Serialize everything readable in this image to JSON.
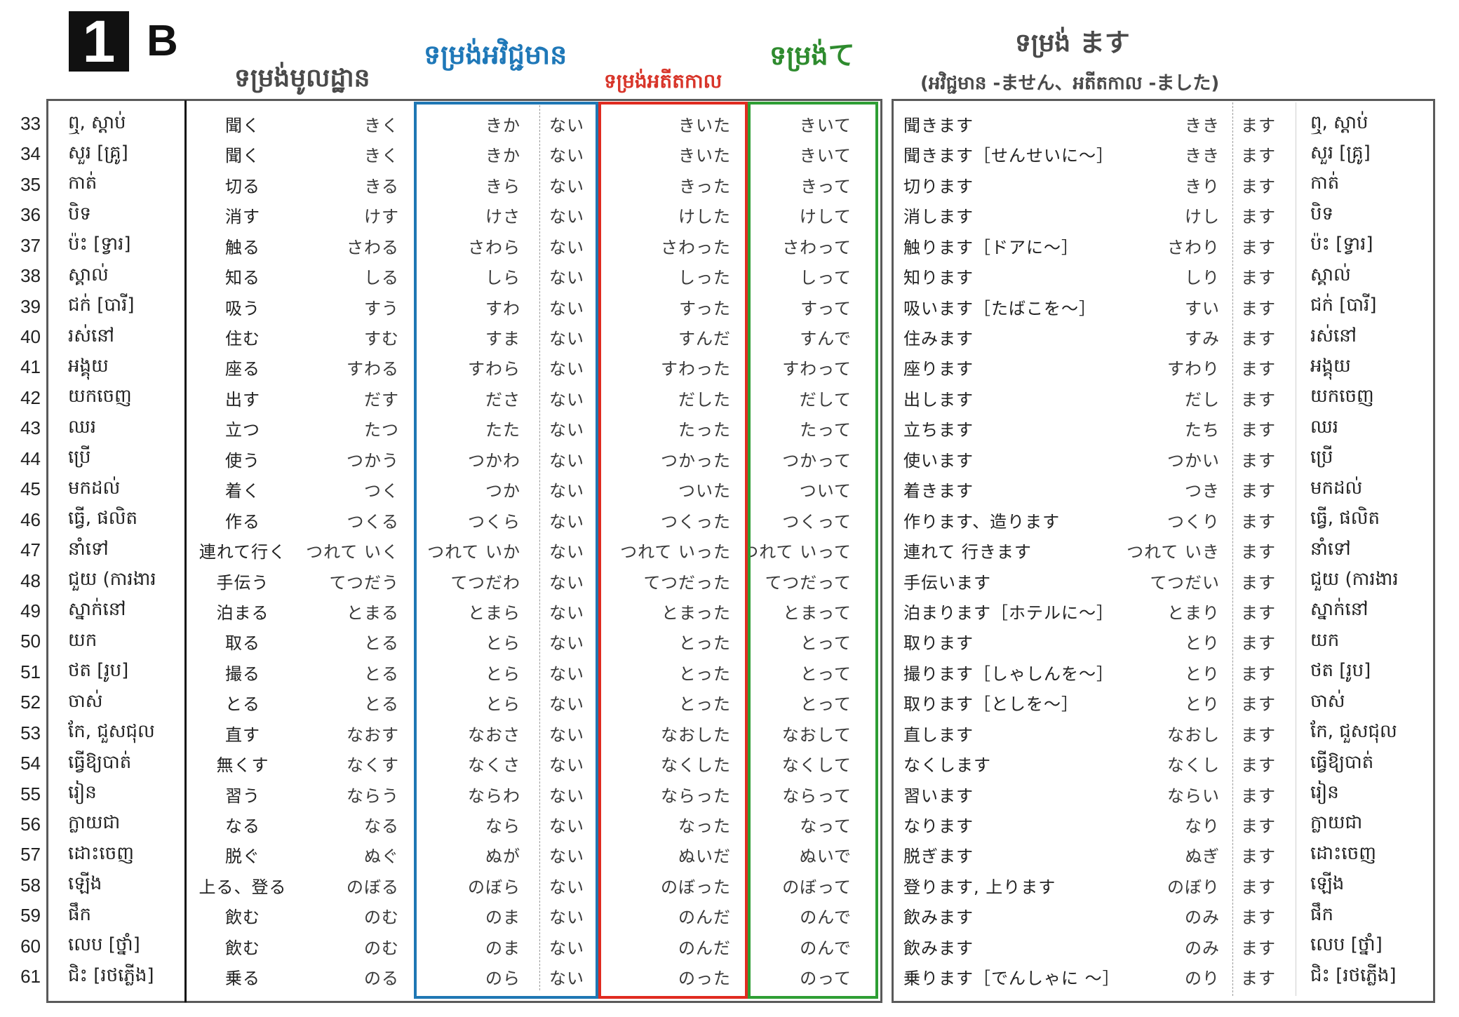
{
  "badge": {
    "number": "1",
    "letter": "B"
  },
  "headers": {
    "dict": "ទម្រង់មូលដ្ឋាន",
    "neg": "ទម្រង់អវិជ្ជមាន",
    "past": "ទម្រង់អតីតកាល",
    "te": "ទម្រង់て",
    "masu": "ទម្រង់ ます",
    "masu_sub": "(អវិជ្ជមាន -ません、អតីតកាល -ました)"
  },
  "colors": {
    "neg_box": "#1f77b4",
    "past_box": "#e02b20",
    "te_box": "#2e9e34"
  },
  "table": {
    "neg_suffix": "ない",
    "masu_suffix": "ます"
  },
  "rows": [
    {
      "n": "33",
      "km": "ឮ, ស្តាប់",
      "kanji": "聞く",
      "kana": "きく",
      "neg": "きか",
      "past": "きいた",
      "te": "きいて",
      "masu": "聞きます",
      "stem": "きき"
    },
    {
      "n": "34",
      "km": "សួរ [គ្រូ]",
      "kanji": "聞く",
      "kana": "きく",
      "neg": "きか",
      "past": "きいた",
      "te": "きいて",
      "masu": "聞きます［せんせいに～］",
      "stem": "きき"
    },
    {
      "n": "35",
      "km": "កាត់",
      "kanji": "切る",
      "kana": "きる",
      "neg": "きら",
      "past": "きった",
      "te": "きって",
      "masu": "切ります",
      "stem": "きり"
    },
    {
      "n": "36",
      "km": "បិទ",
      "kanji": "消す",
      "kana": "けす",
      "neg": "けさ",
      "past": "けした",
      "te": "けして",
      "masu": "消します",
      "stem": "けし"
    },
    {
      "n": "37",
      "km": "ប៉ះ [ទ្វារ]",
      "kanji": "触る",
      "kana": "さわる",
      "neg": "さわら",
      "past": "さわった",
      "te": "さわって",
      "masu": "触ります［ドアに～］",
      "stem": "さわり"
    },
    {
      "n": "38",
      "km": "ស្គាល់",
      "kanji": "知る",
      "kana": "しる",
      "neg": "しら",
      "past": "しった",
      "te": "しって",
      "masu": "知ります",
      "stem": "しり"
    },
    {
      "n": "39",
      "km": "ជក់ [បារី]",
      "kanji": "吸う",
      "kana": "すう",
      "neg": "すわ",
      "past": "すった",
      "te": "すって",
      "masu": "吸います［たばこを～］",
      "stem": "すい"
    },
    {
      "n": "40",
      "km": "រស់នៅ",
      "kanji": "住む",
      "kana": "すむ",
      "neg": "すま",
      "past": "すんだ",
      "te": "すんで",
      "masu": "住みます",
      "stem": "すみ"
    },
    {
      "n": "41",
      "km": "អង្គុយ",
      "kanji": "座る",
      "kana": "すわる",
      "neg": "すわら",
      "past": "すわった",
      "te": "すわって",
      "masu": "座ります",
      "stem": "すわり"
    },
    {
      "n": "42",
      "km": "យកចេញ",
      "kanji": "出す",
      "kana": "だす",
      "neg": "ださ",
      "past": "だした",
      "te": "だして",
      "masu": "出します",
      "stem": "だし"
    },
    {
      "n": "43",
      "km": "ឈរ",
      "kanji": "立つ",
      "kana": "たつ",
      "neg": "たた",
      "past": "たった",
      "te": "たって",
      "masu": "立ちます",
      "stem": "たち"
    },
    {
      "n": "44",
      "km": "ប្រើ",
      "kanji": "使う",
      "kana": "つかう",
      "neg": "つかわ",
      "past": "つかった",
      "te": "つかって",
      "masu": "使います",
      "stem": "つかい"
    },
    {
      "n": "45",
      "km": "មកដល់",
      "kanji": "着く",
      "kana": "つく",
      "neg": "つか",
      "past": "ついた",
      "te": "ついて",
      "masu": "着きます",
      "stem": "つき"
    },
    {
      "n": "46",
      "km": "ធ្វើ, ផលិត",
      "kanji": "作る",
      "kana": "つくる",
      "neg": "つくら",
      "past": "つくった",
      "te": "つくって",
      "masu": "作ります、造ります",
      "stem": "つくり"
    },
    {
      "n": "47",
      "km": "នាំទៅ",
      "kanji": "連れて行く",
      "kana": "つれて いく",
      "neg": "つれて いか",
      "past": "つれて いった",
      "te": "つれて いって",
      "masu": "連れて 行きます",
      "stem": "つれて いき"
    },
    {
      "n": "48",
      "km": "ជួយ (ការងារ",
      "kanji": "手伝う",
      "kana": "てつだう",
      "neg": "てつだわ",
      "past": "てつだった",
      "te": "てつだって",
      "masu": "手伝います",
      "stem": "てつだい"
    },
    {
      "n": "49",
      "km": "ស្នាក់នៅ",
      "kanji": "泊まる",
      "kana": "とまる",
      "neg": "とまら",
      "past": "とまった",
      "te": "とまって",
      "masu": "泊まります［ホテルに～］",
      "stem": "とまり"
    },
    {
      "n": "50",
      "km": "យក",
      "kanji": "取る",
      "kana": "とる",
      "neg": "とら",
      "past": "とった",
      "te": "とって",
      "masu": "取ります",
      "stem": "とり"
    },
    {
      "n": "51",
      "km": "ថត [រូប]",
      "kanji": "撮る",
      "kana": "とる",
      "neg": "とら",
      "past": "とった",
      "te": "とって",
      "masu": "撮ります［しゃしんを～］",
      "stem": "とり"
    },
    {
      "n": "52",
      "km": "ចាស់",
      "kanji": "とる",
      "kana": "とる",
      "neg": "とら",
      "past": "とった",
      "te": "とって",
      "masu": "取ります［としを～］",
      "stem": "とり"
    },
    {
      "n": "53",
      "km": "កែ, ជួសជុល",
      "kanji": "直す",
      "kana": "なおす",
      "neg": "なおさ",
      "past": "なおした",
      "te": "なおして",
      "masu": "直します",
      "stem": "なおし"
    },
    {
      "n": "54",
      "km": "ធ្វើឱ្យបាត់",
      "kanji": "無くす",
      "kana": "なくす",
      "neg": "なくさ",
      "past": "なくした",
      "te": "なくして",
      "masu": "なくします",
      "stem": "なくし"
    },
    {
      "n": "55",
      "km": "រៀន",
      "kanji": "習う",
      "kana": "ならう",
      "neg": "ならわ",
      "past": "ならった",
      "te": "ならって",
      "masu": "習います",
      "stem": "ならい"
    },
    {
      "n": "56",
      "km": "ក្លាយជា",
      "kanji": "なる",
      "kana": "なる",
      "neg": "なら",
      "past": "なった",
      "te": "なって",
      "masu": "なります",
      "stem": "なり"
    },
    {
      "n": "57",
      "km": "ដោះចេញ",
      "kanji": "脱ぐ",
      "kana": "ぬぐ",
      "neg": "ぬが",
      "past": "ぬいだ",
      "te": "ぬいで",
      "masu": "脱ぎます",
      "stem": "ぬぎ"
    },
    {
      "n": "58",
      "km": "ឡើង",
      "kanji": "上る、登る",
      "kana": "のぼる",
      "neg": "のぼら",
      "past": "のぼった",
      "te": "のぼって",
      "masu": "登ります, 上ります",
      "stem": "のぼり"
    },
    {
      "n": "59",
      "km": "ផឹក",
      "kanji": "飲む",
      "kana": "のむ",
      "neg": "のま",
      "past": "のんだ",
      "te": "のんで",
      "masu": "飲みます",
      "stem": "のみ"
    },
    {
      "n": "60",
      "km": "លេប [ថ្នាំ]",
      "kanji": "飲む",
      "kana": "のむ",
      "neg": "のま",
      "past": "のんだ",
      "te": "のんで",
      "masu": "飲みます",
      "stem": "のみ"
    },
    {
      "n": "61",
      "km": "ជិះ [រថភ្លើង]",
      "kanji": "乗る",
      "kana": "のる",
      "neg": "のら",
      "past": "のった",
      "te": "のって",
      "masu": "乗ります［でんしゃに ～］",
      "stem": "のり"
    }
  ]
}
